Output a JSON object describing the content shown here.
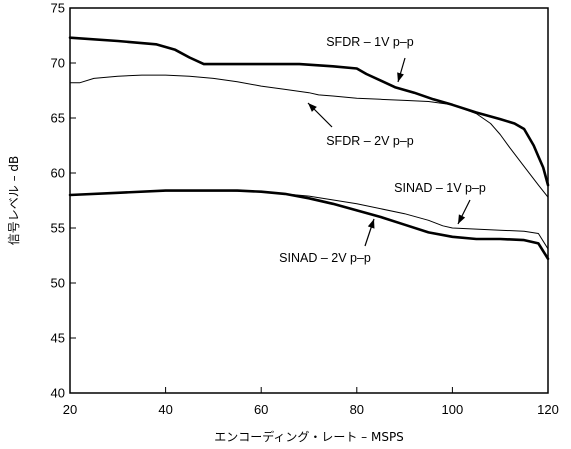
{
  "chart_data": {
    "type": "line",
    "xlabel": "エンコーディング・レート – MSPS",
    "ylabel": "信号レベル – dB",
    "xlim": [
      20,
      120
    ],
    "ylim": [
      40,
      75
    ],
    "x_ticks": [
      20,
      40,
      60,
      80,
      100,
      120
    ],
    "y_ticks": [
      40,
      45,
      50,
      55,
      60,
      65,
      70,
      75
    ],
    "grid": false,
    "series": [
      {
        "name": "SFDR – 1V p–p",
        "style": "thick",
        "x": [
          20,
          30,
          38,
          42,
          45,
          48,
          52,
          60,
          68,
          75,
          80,
          82,
          85,
          88,
          92,
          96,
          100,
          105,
          110,
          113,
          115,
          117,
          118,
          119,
          120
        ],
        "y": [
          72.3,
          72.0,
          71.7,
          71.2,
          70.5,
          69.9,
          69.9,
          69.9,
          69.9,
          69.7,
          69.5,
          69.0,
          68.4,
          67.8,
          67.3,
          66.7,
          66.2,
          65.5,
          64.9,
          64.5,
          64.0,
          62.5,
          61.5,
          60.5,
          58.9
        ]
      },
      {
        "name": "SFDR – 2V p–p",
        "style": "thin",
        "x": [
          20,
          22,
          25,
          30,
          35,
          40,
          45,
          50,
          55,
          60,
          65,
          70,
          72,
          75,
          80,
          85,
          90,
          95,
          100,
          105,
          108,
          110,
          112,
          115,
          118,
          120
        ],
        "y": [
          68.2,
          68.2,
          68.6,
          68.8,
          68.9,
          68.9,
          68.8,
          68.6,
          68.3,
          67.9,
          67.6,
          67.3,
          67.1,
          67.0,
          66.8,
          66.7,
          66.6,
          66.5,
          66.2,
          65.4,
          64.5,
          63.5,
          62.3,
          60.6,
          58.9,
          57.8
        ]
      },
      {
        "name": "SINAD – 1V p–p",
        "style": "thin",
        "x": [
          20,
          30,
          40,
          50,
          60,
          70,
          80,
          90,
          95,
          98,
          100,
          105,
          110,
          115,
          118,
          120
        ],
        "y": [
          58.0,
          58.2,
          58.4,
          58.4,
          58.3,
          57.9,
          57.2,
          56.3,
          55.7,
          55.2,
          55.0,
          54.9,
          54.8,
          54.7,
          54.5,
          53.1
        ]
      },
      {
        "name": "SINAD – 2V p–p",
        "style": "thick",
        "x": [
          20,
          30,
          40,
          50,
          55,
          60,
          65,
          70,
          75,
          80,
          85,
          90,
          95,
          100,
          105,
          110,
          115,
          118,
          120
        ],
        "y": [
          58.0,
          58.2,
          58.4,
          58.4,
          58.4,
          58.3,
          58.1,
          57.7,
          57.2,
          56.6,
          56.0,
          55.3,
          54.6,
          54.2,
          54.0,
          54.0,
          53.9,
          53.6,
          52.2
        ]
      }
    ],
    "annotations": [
      {
        "text": "SFDR – 1V p–p",
        "series": 0
      },
      {
        "text": "SFDR – 2V p–p",
        "series": 1
      },
      {
        "text": "SINAD – 1V p–p",
        "series": 2
      },
      {
        "text": "SINAD – 2V p–p",
        "series": 3
      }
    ]
  }
}
